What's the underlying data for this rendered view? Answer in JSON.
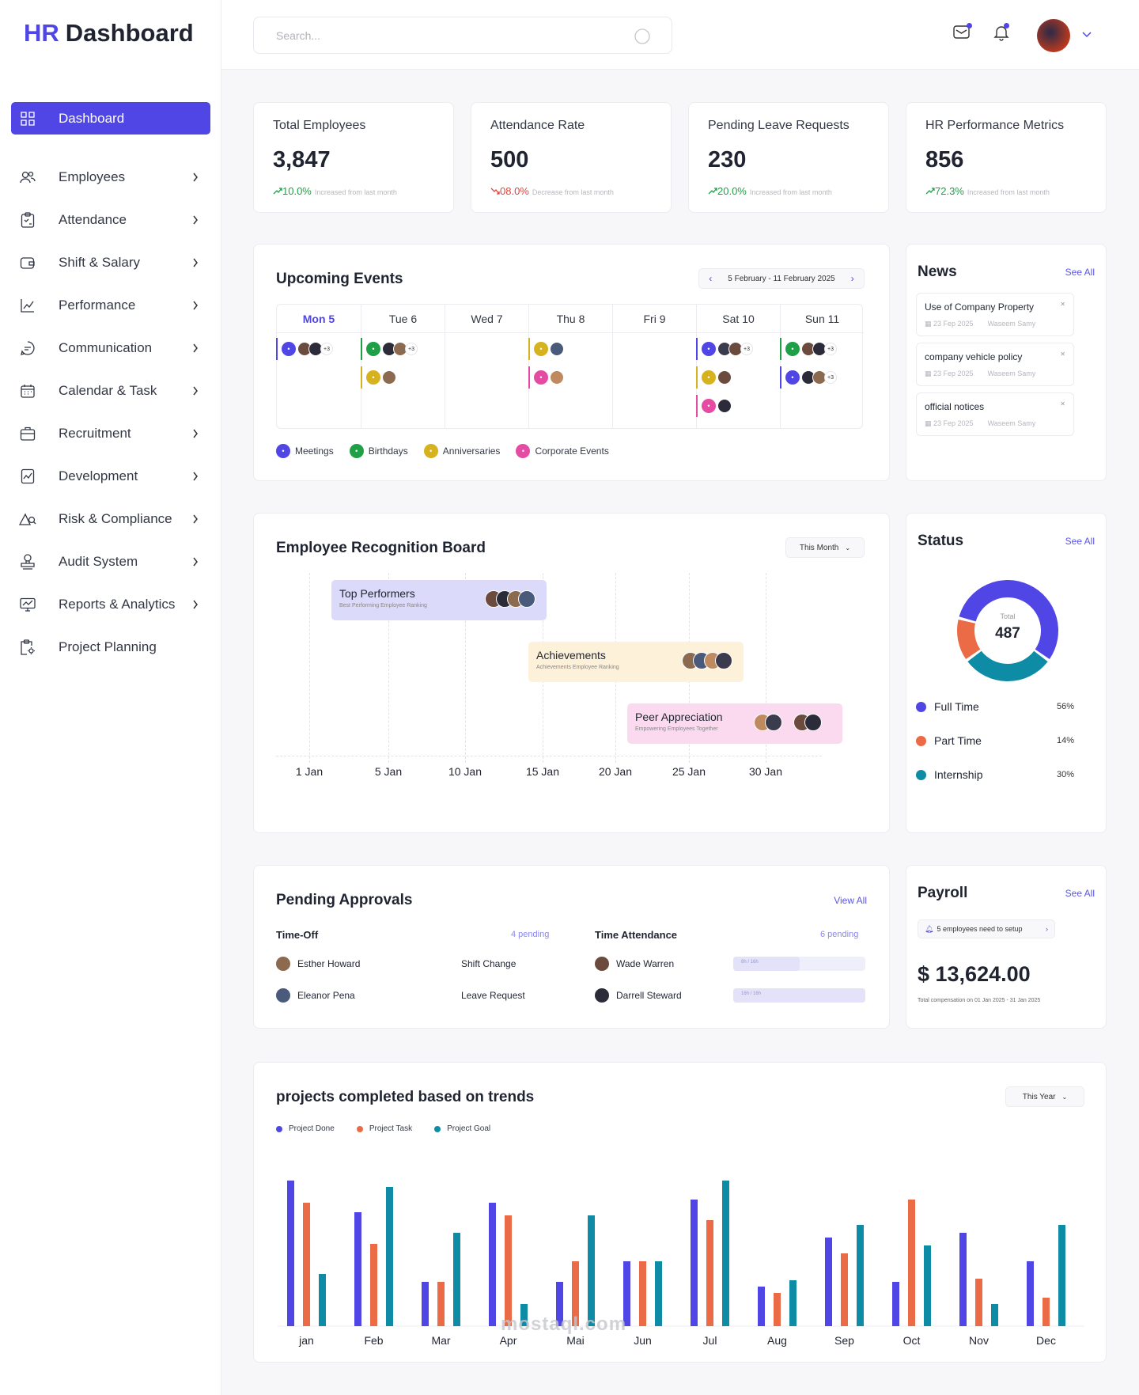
{
  "brand": {
    "prefix": "HR",
    "title": "Dashboard"
  },
  "sidebar": {
    "items": [
      {
        "label": "Dashboard",
        "icon": "grid-icon",
        "active": true
      },
      {
        "label": "Employees",
        "icon": "users-icon"
      },
      {
        "label": "Attendance",
        "icon": "clipboard-check-icon"
      },
      {
        "label": "Shift & Salary",
        "icon": "wallet-icon"
      },
      {
        "label": "Performance",
        "icon": "chart-line-icon"
      },
      {
        "label": "Communication",
        "icon": "chat-icon"
      },
      {
        "label": "Calendar & Task",
        "icon": "calendar-icon"
      },
      {
        "label": "Recruitment",
        "icon": "briefcase-icon"
      },
      {
        "label": "Development",
        "icon": "growth-icon"
      },
      {
        "label": "Risk & Compliance",
        "icon": "risk-icon"
      },
      {
        "label": "Audit System",
        "icon": "stamp-icon"
      },
      {
        "label": "Reports & Analytics",
        "icon": "monitor-chart-icon"
      },
      {
        "label": "Project Planning",
        "icon": "clipboard-gear-icon"
      }
    ]
  },
  "search": {
    "placeholder": "Search..."
  },
  "stats": [
    {
      "title": "Total Employees",
      "value": "3,847",
      "trend": "10.0%",
      "dir": "up",
      "note": "Increased from last month"
    },
    {
      "title": "Attendance Rate",
      "value": "500",
      "trend": "08.0%",
      "dir": "down",
      "note": "Decrease from last month"
    },
    {
      "title": "Pending Leave Requests",
      "value": "230",
      "trend": "20.0%",
      "dir": "up",
      "note": "Increased from last month"
    },
    {
      "title": "HR Performance Metrics",
      "value": "856",
      "trend": "72.3%",
      "dir": "up",
      "note": "Increased from last month"
    }
  ],
  "events": {
    "title": "Upcoming Events",
    "range": "5 February - 11 February 2025",
    "days": [
      "Mon 5",
      "Tue 6",
      "Wed 7",
      "Thu 8",
      "Fri 9",
      "Sat 10",
      "Sun 11"
    ],
    "more": "+3",
    "legend": [
      "Meetings",
      "Birthdays",
      "Anniversaries",
      "Corporate Events"
    ]
  },
  "news": {
    "title": "News",
    "see_all": "See All",
    "items": [
      {
        "title": "Use of Company Property",
        "date": "23 Fep 2025",
        "author": "Waseem Samy"
      },
      {
        "title": "company vehicle policy",
        "date": "23 Fep 2025",
        "author": "Waseem Samy"
      },
      {
        "title": "official  notices",
        "date": "23 Fep 2025",
        "author": "Waseem Samy"
      }
    ]
  },
  "recognition": {
    "title": "Employee Recognition Board",
    "filter": "This Month",
    "bars": [
      {
        "title": "Top Performers",
        "sub": "Best Performing Employee Ranking"
      },
      {
        "title": "Achievements",
        "sub": "Achievements Employee Ranking"
      },
      {
        "title": "Peer Appreciation",
        "sub": "Empowering Employees Together"
      }
    ],
    "x_labels": [
      "1 Jan",
      "5 Jan",
      "10 Jan",
      "15 Jan",
      "20 Jan",
      "25 Jan",
      "30 Jan"
    ]
  },
  "status": {
    "title": "Status",
    "see_all": "See All",
    "total_label": "Total",
    "total": "487",
    "items": [
      {
        "label": "Full Time",
        "pct": "56%",
        "value": 56,
        "color": "#5046e5"
      },
      {
        "label": "Part Time",
        "pct": "14%",
        "value": 14,
        "color": "#ea6b45"
      },
      {
        "label": "Internship",
        "pct": "30%",
        "value": 30,
        "color": "#0e8ca6"
      }
    ]
  },
  "approvals": {
    "title": "Pending Approvals",
    "view_all": "View All",
    "timeoff": {
      "title": "Time-Off",
      "pending": "4 pending",
      "rows": [
        {
          "name": "Esther Howard",
          "type": "Shift Change"
        },
        {
          "name": "Eleanor Pena",
          "type": "Leave Request"
        }
      ]
    },
    "attendance": {
      "title": "Time Attendance",
      "pending": "6 pending",
      "rows": [
        {
          "name": "Wade Warren",
          "hours": "8h / 16h",
          "fraction": 0.5
        },
        {
          "name": "Darrell Steward",
          "hours": "16h / 16h",
          "fraction": 1.0
        }
      ]
    }
  },
  "payroll": {
    "title": "Payroll",
    "see_all": "See All",
    "notice": "5 employees need to setup",
    "amount": "$ 13,624.00",
    "note": "Total compensation on 01 Jan 2025 - 31 Jan 2025"
  },
  "projects": {
    "title": "projects completed based on trends",
    "filter": "This Year"
  },
  "chart_data": {
    "type": "bar",
    "title": "projects completed based on trends",
    "categories": [
      "jan",
      "Feb",
      "Mar",
      "Apr",
      "Mai",
      "Jun",
      "Jul",
      "Aug",
      "Sep",
      "Oct",
      "Nov",
      "Dec"
    ],
    "series": [
      {
        "name": "Project Done",
        "color": "#5046e5",
        "values": [
          92,
          72,
          28,
          78,
          28,
          41,
          80,
          25,
          56,
          28,
          59,
          41
        ]
      },
      {
        "name": "Project Task",
        "color": "#ea6b45",
        "values": [
          78,
          52,
          28,
          70,
          41,
          41,
          67,
          21,
          46,
          80,
          30,
          18
        ]
      },
      {
        "name": "Project Goal",
        "color": "#0e8ca6",
        "values": [
          33,
          88,
          59,
          14,
          70,
          41,
          92,
          29,
          64,
          51,
          14,
          64
        ]
      }
    ],
    "ylim": [
      0,
      100
    ],
    "legend": "top-left"
  },
  "watermark": "mostaql.com"
}
